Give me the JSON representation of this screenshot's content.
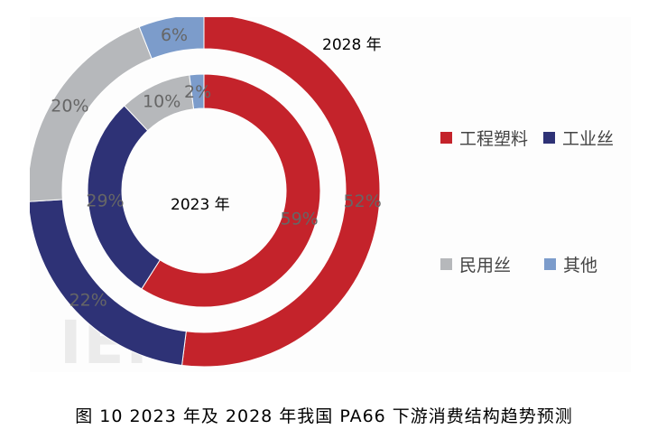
{
  "chart_data": {
    "type": "donut",
    "outer_ring": {
      "name": "2028年",
      "values": [
        52,
        22,
        20,
        6
      ],
      "labels": [
        "52%",
        "22%",
        "20%",
        "6%"
      ]
    },
    "inner_ring": {
      "name": "2023年",
      "values": [
        59,
        29,
        10,
        2
      ],
      "labels": [
        "59%",
        "29%",
        "10%",
        "2%"
      ]
    },
    "categories": [
      "工程塑料",
      "工业丝",
      "民用丝",
      "其他"
    ],
    "colors": [
      "#c4232b",
      "#2e3276",
      "#b6b8bb",
      "#7c9ccb"
    ],
    "legend_position": "right"
  },
  "titles": {
    "outer": "2028 年",
    "inner": "2023 年"
  },
  "legend": [
    {
      "label": "工程塑料",
      "color": "#c4232b"
    },
    {
      "label": "工业丝",
      "color": "#2e3276"
    },
    {
      "label": "民用丝",
      "color": "#b6b8bb"
    },
    {
      "label": "其他",
      "color": "#7c9ccb"
    }
  ],
  "caption": "图 10 2023 年及 2028 年我国 PA66 下游消费结构趋势预测",
  "watermark": "IEM"
}
